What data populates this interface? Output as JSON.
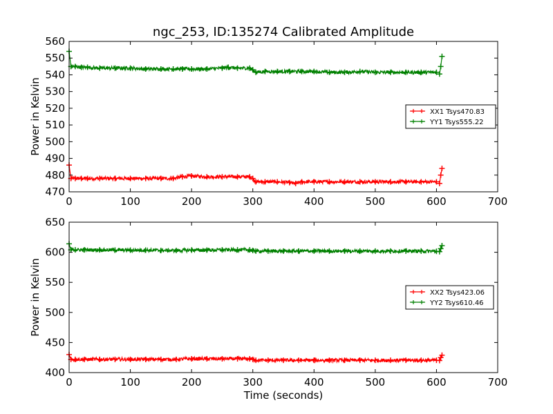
{
  "figure": {
    "title": "ngc_253, ID:135274 Calibrated Amplitude"
  },
  "chart_data": [
    {
      "type": "line",
      "title": "ngc_253, ID:135274 Calibrated Amplitude",
      "xlabel": "",
      "ylabel": "Power in Kelvin",
      "xlim": [
        0,
        700
      ],
      "ylim": [
        470,
        560
      ],
      "xticks": [
        0,
        100,
        200,
        300,
        400,
        500,
        600,
        700
      ],
      "yticks": [
        470,
        480,
        490,
        500,
        510,
        520,
        530,
        540,
        550,
        560
      ],
      "grid": false,
      "legend_position": "right",
      "series": [
        {
          "name": "XX1 Tsys470.83",
          "color": "#ff0000",
          "marker": "+",
          "x": [
            0,
            3,
            10,
            20,
            30,
            50,
            75,
            100,
            125,
            150,
            170,
            185,
            200,
            225,
            250,
            275,
            295,
            300,
            305,
            320,
            340,
            360,
            370,
            380,
            400,
            425,
            450,
            475,
            500,
            525,
            550,
            575,
            600,
            605,
            607,
            609
          ],
          "y": [
            486,
            478,
            478,
            478,
            478,
            478,
            478,
            478,
            478,
            478,
            478,
            479,
            479.5,
            479,
            479,
            479,
            479,
            478,
            476,
            476,
            476,
            475.5,
            475,
            476,
            476,
            476,
            476,
            476,
            476,
            476,
            476,
            476,
            476,
            475,
            480,
            484
          ]
        },
        {
          "name": "YY1 Tsys555.22",
          "color": "#008000",
          "marker": "+",
          "x": [
            0,
            3,
            10,
            20,
            30,
            50,
            75,
            100,
            125,
            150,
            170,
            185,
            200,
            225,
            250,
            260,
            275,
            295,
            300,
            305,
            320,
            340,
            360,
            380,
            400,
            425,
            450,
            475,
            500,
            525,
            550,
            575,
            600,
            605,
            607,
            609
          ],
          "y": [
            554,
            545,
            545,
            544.5,
            544.5,
            544,
            544,
            544,
            543.5,
            543.5,
            543.5,
            543.5,
            543.5,
            543.5,
            544,
            544.5,
            544,
            544,
            543,
            541.5,
            542,
            542,
            542,
            542,
            542,
            541.5,
            541.5,
            542,
            541.5,
            541.5,
            541.5,
            541.5,
            541.5,
            540.5,
            545,
            551
          ]
        }
      ]
    },
    {
      "type": "line",
      "title": "",
      "xlabel": "Time (seconds)",
      "ylabel": "Power in Kelvin",
      "xlim": [
        0,
        700
      ],
      "ylim": [
        400,
        650
      ],
      "xticks": [
        0,
        100,
        200,
        300,
        400,
        500,
        600,
        700
      ],
      "yticks": [
        400,
        450,
        500,
        550,
        600,
        650
      ],
      "grid": false,
      "legend_position": "right",
      "series": [
        {
          "name": "XX2 Tsys423.06",
          "color": "#ff0000",
          "marker": "+",
          "x": [
            0,
            3,
            10,
            25,
            50,
            75,
            100,
            125,
            150,
            175,
            200,
            225,
            250,
            275,
            295,
            300,
            305,
            325,
            350,
            375,
            400,
            425,
            450,
            475,
            500,
            525,
            550,
            575,
            600,
            605,
            607,
            609
          ],
          "y": [
            430,
            422,
            422,
            422,
            422,
            422,
            422,
            422,
            422,
            422,
            423,
            423,
            423,
            423,
            423,
            422,
            420.5,
            420.5,
            420.5,
            420.5,
            420.5,
            420.5,
            420.5,
            420.5,
            420.5,
            420.5,
            420.5,
            420.5,
            420.5,
            420,
            425,
            429
          ]
        },
        {
          "name": "YY2 Tsys610.46",
          "color": "#008000",
          "marker": "+",
          "x": [
            0,
            3,
            10,
            25,
            50,
            75,
            100,
            125,
            150,
            175,
            200,
            225,
            250,
            275,
            295,
            300,
            305,
            325,
            350,
            375,
            400,
            425,
            450,
            475,
            500,
            525,
            550,
            575,
            600,
            605,
            607,
            609
          ],
          "y": [
            614,
            604,
            604,
            604,
            604,
            603.5,
            603.5,
            603.5,
            603,
            603,
            603.5,
            603.5,
            604,
            604,
            604,
            603,
            602,
            602,
            602,
            602,
            602,
            602,
            602,
            602,
            602,
            602,
            602,
            602,
            601.5,
            601,
            606,
            611
          ]
        }
      ]
    }
  ]
}
